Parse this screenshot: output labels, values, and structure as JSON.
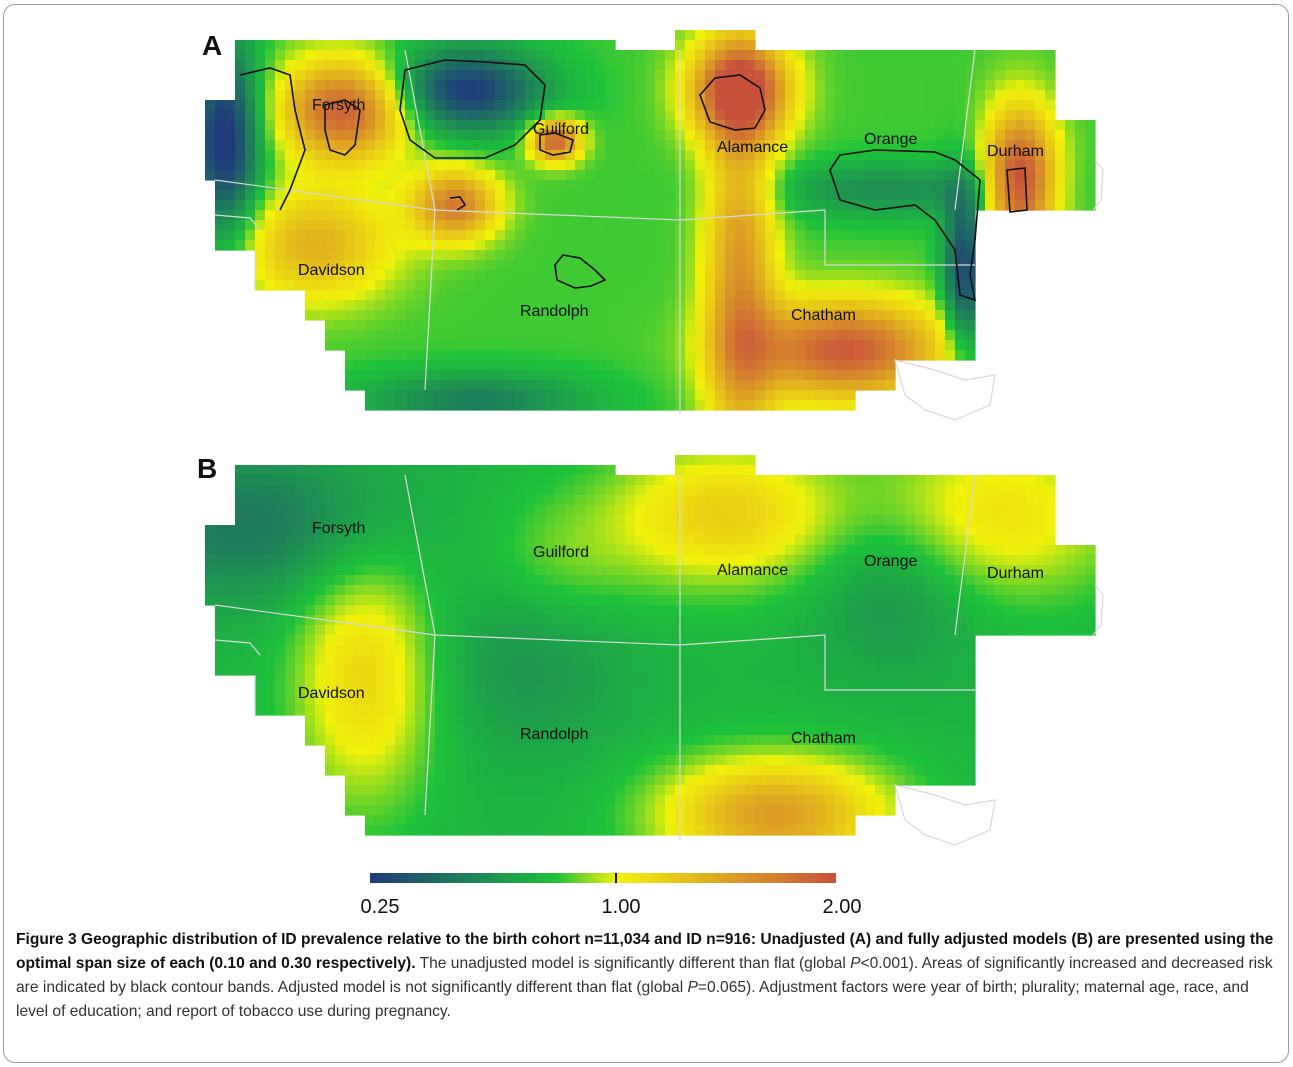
{
  "figure": {
    "panels": [
      {
        "letter": "A",
        "counties": [
          "Forsyth",
          "Guilford",
          "Alamance",
          "Orange",
          "Durham",
          "Davidson",
          "Randolph",
          "Chatham"
        ]
      },
      {
        "letter": "B",
        "counties": [
          "Forsyth",
          "Guilford",
          "Alamance",
          "Orange",
          "Durham",
          "Davidson",
          "Randolph",
          "Chatham"
        ]
      }
    ],
    "legend": {
      "ticks": [
        "0.25",
        "1.00",
        "2.00"
      ],
      "colors": [
        "#1e3a7b",
        "#1ec23a",
        "#f2f20a",
        "#c8513c"
      ]
    },
    "caption": {
      "bold": "Figure 3 Geographic distribution of ID prevalence relative to the birth cohort n=11,034 and ID n=916: Unadjusted (A) and fully adjusted models (B) are presented using the optimal span size of each (0.10 and 0.30 respectively).",
      "s1_pre": " The unadjusted model is significantly different than flat (global ",
      "p1_italic": "P",
      "s1_post": "<0.001). Areas of significantly increased and decreased risk are indicated by black contour bands. Adjusted model is not significantly different than flat (global ",
      "p2_italic": "P",
      "s2_post": "=0.065). Adjustment factors were year of birth; plurality; maternal age, race, and level of education; and report of tobacco use during pregnancy."
    }
  }
}
